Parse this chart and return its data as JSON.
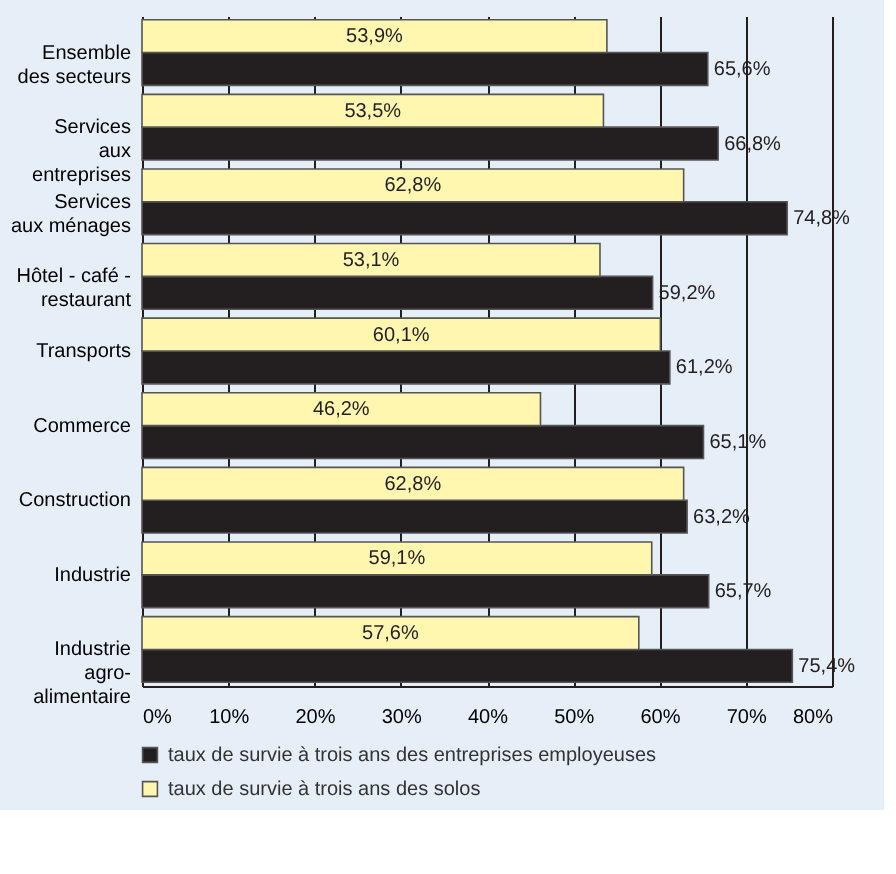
{
  "chart_data": {
    "type": "bar",
    "orientation": "horizontal",
    "categories": [
      "Ensemble\ndes secteurs",
      "Services\naux\nentreprises",
      "Services\naux ménages",
      "Hôtel - café -\nrestaurant",
      "Transports",
      "Commerce",
      "Construction",
      "Industrie",
      "Industrie\nagro-\nalimentaire"
    ],
    "series": [
      {
        "name": "taux de survie à trois ans des entreprises employeuses",
        "color": "#231f20",
        "values": [
          65.6,
          66.8,
          74.8,
          59.2,
          61.2,
          65.1,
          63.2,
          65.7,
          75.4
        ],
        "value_labels": [
          "65,6%",
          "66,8%",
          "74,8%",
          "59,2%",
          "61,2%",
          "65,1%",
          "63,2%",
          "65,7%",
          "75,4%"
        ]
      },
      {
        "name": "taux de survie à trois ans des solos",
        "color": "#fff6b0",
        "values": [
          53.9,
          53.5,
          62.8,
          53.1,
          60.1,
          46.2,
          62.8,
          59.1,
          57.6
        ],
        "value_labels": [
          "53,9%",
          "53,5%",
          "62,8%",
          "53,1%",
          "60,1%",
          "46,2%",
          "62,8%",
          "59,1%",
          "57,6%"
        ]
      }
    ],
    "xlim": [
      0,
      80
    ],
    "xticks": [
      {
        "value": 0,
        "label": "0%"
      },
      {
        "value": 10,
        "label": "10%"
      },
      {
        "value": 20,
        "label": "20%"
      },
      {
        "value": 30,
        "label": "30%"
      },
      {
        "value": 40,
        "label": "40%"
      },
      {
        "value": 50,
        "label": "50%"
      },
      {
        "value": 60,
        "label": "60%"
      },
      {
        "value": 70,
        "label": "70%"
      },
      {
        "value": 80,
        "label": "80%"
      }
    ],
    "grid": "x",
    "legend": "bottom"
  }
}
